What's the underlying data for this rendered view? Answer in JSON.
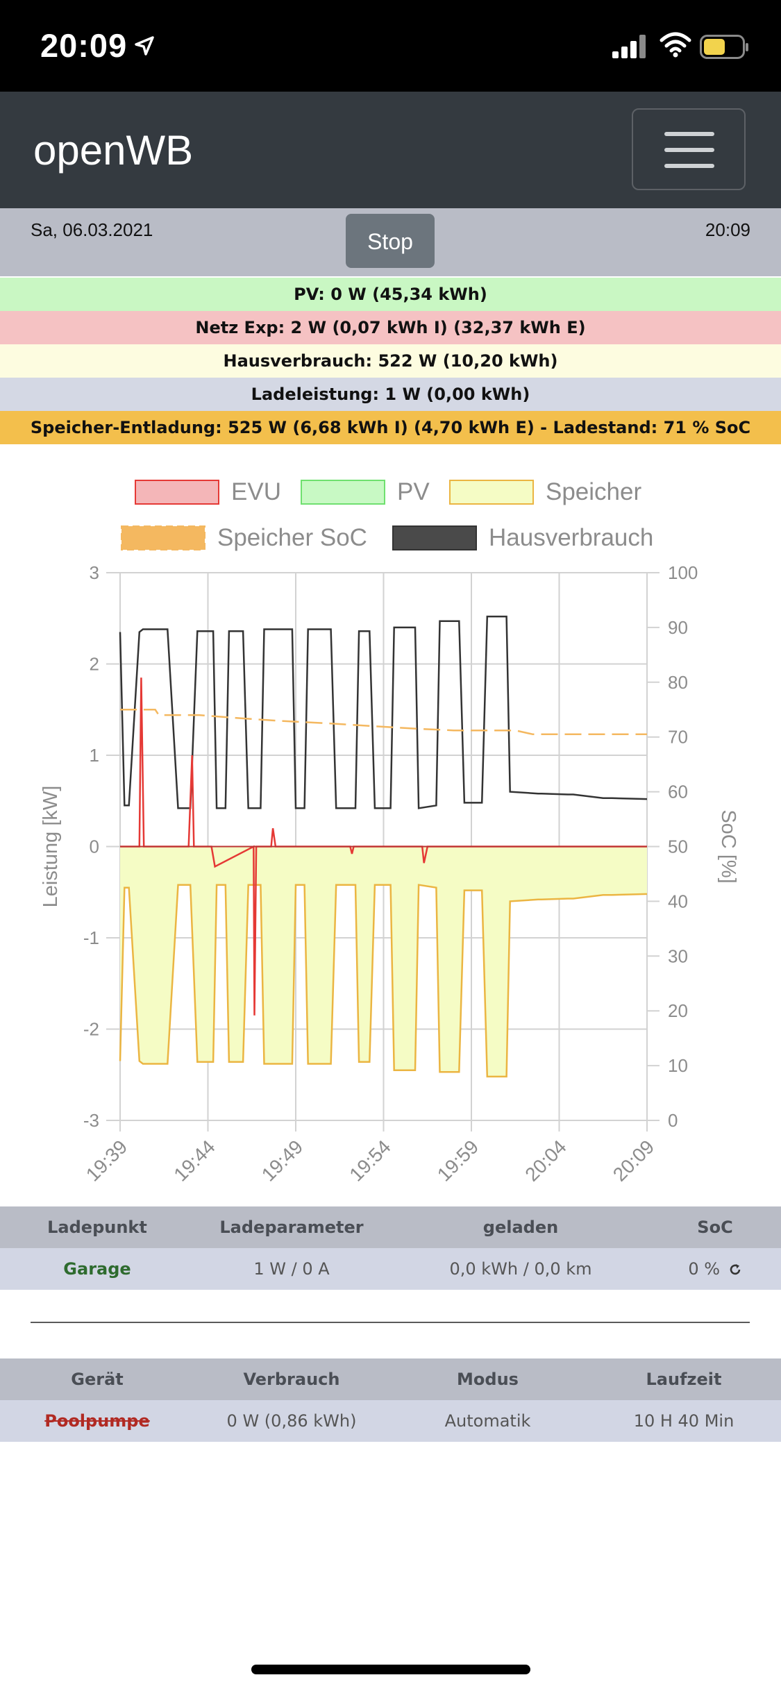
{
  "statusbar": {
    "time": "20:09",
    "location_icon": "location-arrow-icon",
    "signal_icon": "cellular-signal-icon",
    "wifi_icon": "wifi-icon",
    "battery_icon": "battery-icon"
  },
  "navbar": {
    "brand": "openWB",
    "menu_icon": "hamburger-menu-icon"
  },
  "info": {
    "date": "Sa, 06.03.2021",
    "stop_label": "Stop",
    "time": "20:09"
  },
  "status_bars": [
    {
      "text": "PV: 0 W (45,34 kWh)",
      "color": "#c9f7c3"
    },
    {
      "text": "Netz Exp: 2 W (0,07 kWh I) (32,37 kWh E)",
      "color": "#f5c2c3"
    },
    {
      "text": "Hausverbrauch: 522 W (10,20 kWh)",
      "color": "#fdfce0"
    },
    {
      "text": "Ladeleistung: 1 W (0,00 kWh)",
      "color": "#d4d8e4"
    },
    {
      "text": "Speicher-Entladung: 525 W (6,68 kWh I) (4,70 kWh E) - Ladestand: 71 % SoC",
      "color": "#f3bf4c"
    }
  ],
  "chart_data": {
    "type": "line",
    "legend": [
      {
        "name": "EVU",
        "color": "#e53935",
        "fill": "#f4b6b8"
      },
      {
        "name": "PV",
        "color": "#6fe06f",
        "fill": "#c8f9c4"
      },
      {
        "name": "Speicher",
        "color": "#ebb542",
        "fill": "#f5fcc5"
      },
      {
        "name": "Speicher SoC",
        "color": "#f4b860",
        "fill": "#f4b860",
        "dashed": true
      },
      {
        "name": "Hausverbrauch",
        "color": "#333333",
        "fill": "#4a4a4a"
      }
    ],
    "ylabel": "Leistung [kW]",
    "y2label": "SoC [%]",
    "ylim": [
      -3,
      3
    ],
    "y2lim": [
      0,
      100
    ],
    "y_ticks": [
      "3",
      "2",
      "1",
      "0",
      "-1",
      "-2",
      "-3"
    ],
    "y2_ticks": [
      "100",
      "90",
      "80",
      "70",
      "60",
      "50",
      "40",
      "30",
      "20",
      "10",
      "0"
    ],
    "x_ticks": [
      "19:39",
      "19:44",
      "19:49",
      "19:54",
      "19:59",
      "20:04",
      "20:09"
    ],
    "xlim": [
      "19:39",
      "20:09"
    ],
    "grid": true,
    "series": [
      {
        "name": "Hausverbrauch",
        "x_minutes_after_1939": [
          0,
          0.25,
          0.5,
          1.1,
          1.3,
          2.7,
          3.3,
          4.0,
          4.4,
          5.3,
          5.5,
          6.0,
          6.2,
          7.0,
          7.3,
          8.0,
          8.2,
          9.8,
          10.0,
          10.5,
          10.7,
          12.0,
          12.3,
          13.4,
          13.6,
          14.2,
          14.5,
          15.4,
          15.6,
          16.8,
          17.0,
          18.0,
          18.2,
          19.3,
          19.6,
          20.6,
          20.9,
          22.0,
          22.2,
          23.8,
          24.0,
          25.5,
          25.8,
          27.5,
          28.0,
          30.0
        ],
        "y": [
          2.35,
          0.45,
          0.45,
          2.35,
          2.38,
          2.38,
          0.42,
          0.42,
          2.36,
          2.36,
          0.42,
          0.42,
          2.36,
          2.36,
          0.42,
          0.42,
          2.38,
          2.38,
          0.42,
          0.42,
          2.38,
          2.38,
          0.42,
          0.42,
          2.36,
          2.36,
          0.42,
          0.42,
          2.4,
          2.4,
          0.42,
          0.45,
          2.47,
          2.47,
          0.48,
          0.48,
          2.52,
          2.52,
          0.6,
          0.58,
          0.58,
          0.57,
          0.57,
          0.53,
          0.53,
          0.52
        ]
      },
      {
        "name": "EVU",
        "x_minutes_after_1939": [
          0,
          1.1,
          1.2,
          1.35,
          3.9,
          4.1,
          4.2,
          5.2,
          5.4,
          7.6,
          7.65,
          7.75,
          8.6,
          8.7,
          8.85,
          13.1,
          13.2,
          13.3,
          17.2,
          17.3,
          17.5,
          30
        ],
        "y": [
          0,
          0,
          1.85,
          0,
          0,
          1.0,
          0,
          0,
          -0.22,
          0,
          -1.85,
          0,
          0,
          0.2,
          0,
          0,
          -0.08,
          0,
          0,
          -0.18,
          0,
          0
        ]
      },
      {
        "name": "Speicher",
        "x_minutes_after_1939": [
          0,
          0.25,
          0.5,
          1.1,
          1.3,
          2.7,
          3.3,
          4.0,
          4.4,
          5.3,
          5.5,
          6.0,
          6.2,
          7.0,
          7.3,
          8.0,
          8.2,
          9.8,
          10.0,
          10.5,
          10.7,
          12.0,
          12.3,
          13.4,
          13.6,
          14.2,
          14.5,
          15.4,
          15.6,
          16.8,
          17.0,
          18.0,
          18.2,
          19.3,
          19.6,
          20.6,
          20.9,
          22.0,
          22.2,
          23.8,
          24.0,
          25.5,
          25.8,
          27.5,
          28.0,
          30.0
        ],
        "y": [
          -2.35,
          -0.45,
          -0.45,
          -2.35,
          -2.38,
          -2.38,
          -0.42,
          -0.42,
          -2.36,
          -2.36,
          -0.42,
          -0.42,
          -2.36,
          -2.36,
          -0.42,
          -0.42,
          -2.38,
          -2.38,
          -0.42,
          -0.42,
          -2.38,
          -2.38,
          -0.42,
          -0.42,
          -2.36,
          -2.36,
          -0.42,
          -0.42,
          -2.45,
          -2.45,
          -0.42,
          -0.45,
          -2.47,
          -2.47,
          -0.48,
          -0.48,
          -2.52,
          -2.52,
          -0.6,
          -0.58,
          -0.58,
          -0.57,
          -0.57,
          -0.53,
          -0.53,
          -0.52
        ]
      },
      {
        "name": "Speicher SoC",
        "x_minutes_after_1939": [
          0,
          2.0,
          2.2,
          4.5,
          6.5,
          8.8,
          11.8,
          14.3,
          17.0,
          19.0,
          22.5,
          23.5,
          25.0,
          30.0
        ],
        "y": [
          75,
          75,
          74,
          74,
          73.5,
          73,
          72.5,
          72,
          71.5,
          71.2,
          71.2,
          70.5,
          70.5,
          70.5
        ]
      },
      {
        "name": "PV",
        "x_minutes_after_1939": [
          0,
          30
        ],
        "y": [
          0,
          0
        ]
      }
    ]
  },
  "ladepunkt_table": {
    "headers": [
      "Ladepunkt",
      "Ladeparameter",
      "geladen",
      "SoC"
    ],
    "rows": [
      {
        "name": "Garage",
        "param": "1 W / 0 A",
        "geladen": "0,0 kWh / 0,0 km",
        "soc": "0 %",
        "refresh_icon": "refresh-icon"
      }
    ]
  },
  "geraet_table": {
    "headers": [
      "Gerät",
      "Verbrauch",
      "Modus",
      "Laufzeit"
    ],
    "rows": [
      {
        "name": "Poolpumpe",
        "verbrauch": "0 W (0,86 kWh)",
        "modus": "Automatik",
        "laufzeit": "10 H 40 Min"
      }
    ]
  }
}
